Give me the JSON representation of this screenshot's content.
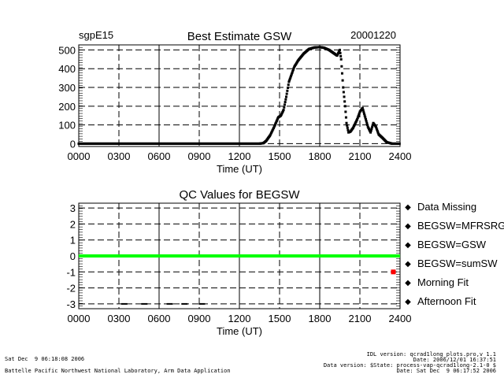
{
  "chart_data": [
    {
      "type": "scatter",
      "title": "Best Estimate GSW",
      "site_label": "sgpE15",
      "date_label": "20001220",
      "xlabel": "Time (UT)",
      "ylabel": "",
      "xlim": [
        0,
        24
      ],
      "ylim": [
        -15,
        527
      ],
      "grid": true,
      "x_ticks": [
        0,
        3,
        6,
        9,
        12,
        15,
        18,
        21,
        24
      ],
      "x_tick_labels": [
        "0000",
        "0300",
        "0600",
        "0900",
        "1200",
        "1500",
        "1800",
        "2100",
        "2400"
      ],
      "y_ticks": [
        0,
        100,
        200,
        300,
        400,
        500
      ],
      "y_tick_labels": [
        "0",
        "100",
        "200",
        "300",
        "400",
        "500"
      ],
      "series": [
        {
          "name": "BEGSW",
          "color": "#000000",
          "x": [
            0,
            13.5,
            13.8,
            14.0,
            14.3,
            14.6,
            14.9,
            15.1,
            15.3,
            15.5,
            15.7,
            15.9,
            16.1,
            16.4,
            16.8,
            17.2,
            17.6,
            18.0,
            18.3,
            18.7,
            19.0,
            19.3,
            19.5,
            19.6,
            19.75,
            19.9,
            20.0,
            20.15,
            20.3,
            20.5,
            20.8,
            21.0,
            21.2,
            21.4,
            21.6,
            21.8,
            22.0,
            22.2,
            22.4,
            22.7,
            23.0,
            23.4,
            24.0
          ],
          "y": [
            0,
            0,
            3,
            15,
            45,
            90,
            140,
            150,
            180,
            250,
            330,
            370,
            410,
            445,
            480,
            505,
            513,
            515,
            512,
            500,
            485,
            470,
            500,
            450,
            300,
            200,
            110,
            60,
            65,
            85,
            130,
            170,
            190,
            140,
            90,
            60,
            110,
            90,
            50,
            30,
            8,
            0,
            0
          ]
        }
      ]
    },
    {
      "type": "scatter",
      "title": "QC Values for BEGSW",
      "xlabel": "Time (UT)",
      "xlim": [
        0,
        24
      ],
      "ylim": [
        -3.3,
        3.3
      ],
      "grid": true,
      "x_ticks": [
        0,
        3,
        6,
        9,
        12,
        15,
        18,
        21,
        24
      ],
      "x_tick_labels": [
        "0000",
        "0300",
        "0600",
        "0900",
        "1200",
        "1500",
        "1800",
        "2100",
        "2400"
      ],
      "y_ticks": [
        -3,
        -2,
        -1,
        0,
        1,
        2,
        3
      ],
      "y_tick_labels": [
        "-3",
        "-2",
        "-1",
        "0",
        "1",
        "2",
        "3"
      ],
      "series": [
        {
          "name": "BEGSW=sumSW",
          "color": "#00ff00",
          "x": [
            0,
            24
          ],
          "y": [
            0,
            0
          ],
          "mode": "line"
        },
        {
          "name": "BEGSW=GSW",
          "color": "#ff0000",
          "x": [
            23.5
          ],
          "y": [
            -1
          ]
        },
        {
          "name": "Data Missing",
          "color": "#000000",
          "x": [
            3.4,
            4.9,
            6.8,
            7.9,
            9.2
          ],
          "y": [
            -3,
            -3,
            -3,
            -3,
            -3
          ]
        }
      ],
      "legend": {
        "placement": "right",
        "entries": [
          {
            "label": "Data Missing",
            "color": "#000000"
          },
          {
            "label": "BEGSW=MFRSRG",
            "color": "#0000ff"
          },
          {
            "label": "BEGSW=GSW",
            "color": "#ff0000"
          },
          {
            "label": "BEGSW=sumSW",
            "color": "#00ff00"
          },
          {
            "label": "Morning Fit",
            "color": "#ff8000"
          },
          {
            "label": "Afternoon Fit",
            "color": "#00e0ff"
          }
        ]
      }
    }
  ],
  "footer": {
    "left_date": "Sat Dec  9 06:18:08 2006",
    "left_org": "Battelle Pacific Northwest National Laboratory, Arm Data Application",
    "right_lines": [
      "IDL version: qcrad1long_plots.pro,v 1.1",
      "Date: 2006/12/01 16:37:51",
      "Data version: $State: process-vap-qcrad1long-2.1-0 $",
      "Date: Sat Dec  9 06:17:52 2006"
    ]
  }
}
